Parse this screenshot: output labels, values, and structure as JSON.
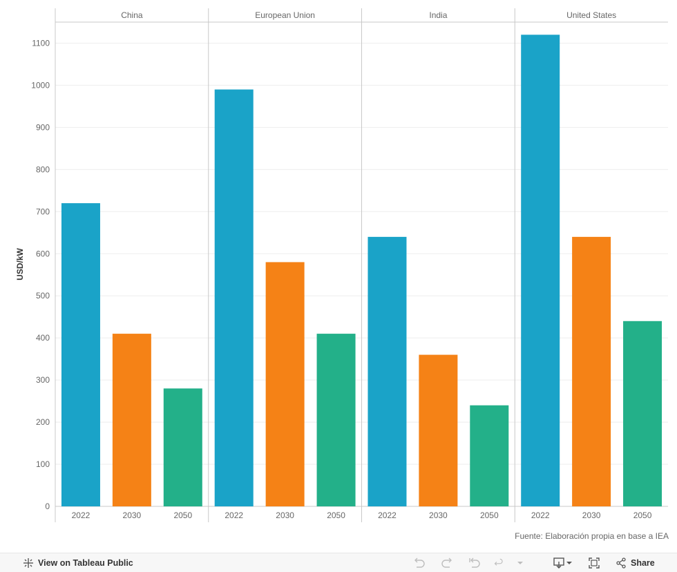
{
  "chart_data": {
    "type": "bar",
    "ylabel": "USD/kW",
    "ylim": [
      0,
      1150
    ],
    "yticks": [
      0,
      100,
      200,
      300,
      400,
      500,
      600,
      700,
      800,
      900,
      1000,
      1100
    ],
    "grid": true,
    "categories": [
      "2022",
      "2030",
      "2050"
    ],
    "panels": [
      {
        "name": "China",
        "values": [
          720,
          410,
          280
        ]
      },
      {
        "name": "European Union",
        "values": [
          990,
          580,
          410
        ]
      },
      {
        "name": "India",
        "values": [
          640,
          360,
          240
        ]
      },
      {
        "name": "United States",
        "values": [
          1120,
          640,
          440
        ]
      }
    ],
    "colors": {
      "2022": "#1aa3c8",
      "2030": "#f58216",
      "2050": "#23b089"
    }
  },
  "source_note": "Fuente: Elaboración propia en base a IEA",
  "toolbar": {
    "view_label": "View on Tableau Public",
    "share_label": "Share",
    "icons": [
      "tableau-icon",
      "undo-icon",
      "redo-icon",
      "revert-icon",
      "refresh-icon",
      "pause-icon",
      "download-icon",
      "fullscreen-icon",
      "share-icon"
    ]
  }
}
